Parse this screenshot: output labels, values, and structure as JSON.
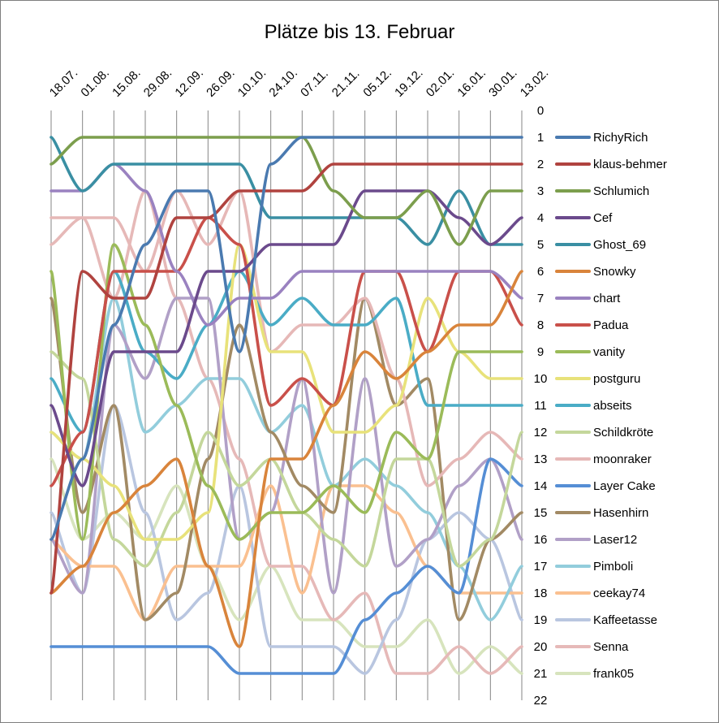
{
  "chart_data": {
    "type": "line",
    "title": "Plätze bis 13. Februar",
    "categories": [
      "18.07.",
      "01.08.",
      "15.08.",
      "29.08.",
      "12.09.",
      "26.09.",
      "10.10.",
      "24.10.",
      "07.11.",
      "21.11.",
      "05.12.",
      "19.12.",
      "02.01.",
      "16.01.",
      "30.01.",
      "13.02."
    ],
    "yticks": [
      0,
      1,
      2,
      3,
      4,
      5,
      6,
      7,
      8,
      9,
      10,
      11,
      12,
      13,
      14,
      15,
      16,
      17,
      18,
      19,
      20,
      21,
      22
    ],
    "ylim": [
      0,
      22
    ],
    "y_reversed": true,
    "y_axis_position": "right",
    "grid": "vertical",
    "legend_position": "right",
    "series": [
      {
        "name": "RichyRich",
        "color": "#4a7ab0",
        "values": [
          16,
          13,
          8,
          5,
          3,
          3,
          9,
          2,
          1,
          1,
          1,
          1,
          1,
          1,
          1,
          1
        ]
      },
      {
        "name": "klaus-behmer",
        "color": "#b0433f",
        "values": [
          18,
          6,
          7,
          7,
          4,
          4,
          3,
          3,
          3,
          2,
          2,
          2,
          2,
          2,
          2,
          2
        ]
      },
      {
        "name": "Schlumich",
        "color": "#7c9e4d",
        "values": [
          2,
          1,
          1,
          1,
          1,
          1,
          1,
          1,
          1,
          3,
          4,
          4,
          3,
          5,
          3,
          3
        ]
      },
      {
        "name": "Cef",
        "color": "#6b4a8c",
        "values": [
          11,
          14,
          9,
          9,
          9,
          6,
          6,
          5,
          5,
          5,
          3,
          3,
          3,
          4,
          5,
          4
        ]
      },
      {
        "name": "Ghost_69",
        "color": "#3a8fa3",
        "values": [
          1,
          3,
          2,
          2,
          2,
          2,
          2,
          4,
          4,
          4,
          4,
          4,
          5,
          3,
          5,
          5
        ]
      },
      {
        "name": "Snowky",
        "color": "#d9843b",
        "values": [
          18,
          17,
          15,
          14,
          13,
          17,
          20,
          13,
          13,
          11,
          9,
          10,
          9,
          8,
          8,
          6
        ]
      },
      {
        "name": "chart",
        "color": "#9a82c0",
        "values": [
          3,
          3,
          2,
          3,
          6,
          8,
          7,
          7,
          6,
          6,
          6,
          6,
          6,
          6,
          6,
          7
        ]
      },
      {
        "name": "Padua",
        "color": "#c9504a",
        "values": [
          14,
          12,
          6,
          6,
          6,
          4,
          5,
          11,
          10,
          11,
          6,
          6,
          9,
          6,
          6,
          8
        ]
      },
      {
        "name": "vanity",
        "color": "#9bbb59",
        "values": [
          6,
          16,
          5,
          8,
          11,
          14,
          16,
          15,
          15,
          14,
          15,
          12,
          13,
          9,
          9,
          9
        ]
      },
      {
        "name": "postguru",
        "color": "#e8e27a",
        "values": [
          12,
          13,
          14,
          16,
          16,
          15,
          5,
          9,
          9,
          12,
          12,
          11,
          7,
          9,
          10,
          10
        ]
      },
      {
        "name": "abseits",
        "color": "#4aacc6",
        "values": [
          10,
          12,
          6,
          9,
          10,
          8,
          6,
          8,
          7,
          8,
          8,
          7,
          11,
          11,
          11,
          11
        ]
      },
      {
        "name": "Schildkröte",
        "color": "#c4d79b",
        "values": [
          9,
          10,
          16,
          17,
          15,
          12,
          14,
          13,
          15,
          16,
          17,
          13,
          13,
          17,
          16,
          12
        ]
      },
      {
        "name": "moonraker",
        "color": "#e6b8b7",
        "values": [
          4,
          4,
          4,
          6,
          3,
          5,
          3,
          9,
          8,
          8,
          7,
          10,
          14,
          13,
          12,
          13
        ]
      },
      {
        "name": "Layer Cake",
        "color": "#558ed5",
        "values": [
          20,
          20,
          20,
          20,
          20,
          20,
          21,
          21,
          21,
          21,
          19,
          18,
          17,
          18,
          13,
          14
        ]
      },
      {
        "name": "Hasenhirn",
        "color": "#a28a64",
        "values": [
          7,
          15,
          11,
          19,
          18,
          13,
          8,
          12,
          14,
          15,
          7,
          11,
          10,
          19,
          16,
          15
        ]
      },
      {
        "name": "Laser12",
        "color": "#b1a0c7",
        "values": [
          16,
          18,
          8,
          10,
          7,
          7,
          16,
          15,
          10,
          18,
          10,
          17,
          16,
          14,
          13,
          16
        ]
      },
      {
        "name": "Pimboli",
        "color": "#92cddc",
        "values": [
          12,
          13,
          7,
          12,
          11,
          10,
          10,
          12,
          11,
          14,
          13,
          14,
          15,
          17,
          19,
          17
        ]
      },
      {
        "name": "ceekay74",
        "color": "#fac090",
        "values": [
          16,
          17,
          17,
          19,
          17,
          17,
          17,
          14,
          18,
          14,
          14,
          15,
          17,
          18,
          18,
          18
        ]
      },
      {
        "name": "Kaffeetasse",
        "color": "#b9c6e0",
        "values": [
          15,
          18,
          11,
          15,
          19,
          18,
          14,
          20,
          20,
          20,
          21,
          19,
          16,
          15,
          16,
          19
        ]
      },
      {
        "name": "Senna",
        "color": "#e6b9b8",
        "values": [
          5,
          4,
          7,
          3,
          7,
          10,
          13,
          17,
          17,
          19,
          18,
          21,
          21,
          20,
          21,
          20
        ]
      },
      {
        "name": "frank05",
        "color": "#d7e4bd",
        "values": [
          13,
          16,
          15,
          16,
          14,
          17,
          19,
          17,
          19,
          19,
          20,
          20,
          19,
          21,
          20,
          21
        ]
      }
    ]
  }
}
